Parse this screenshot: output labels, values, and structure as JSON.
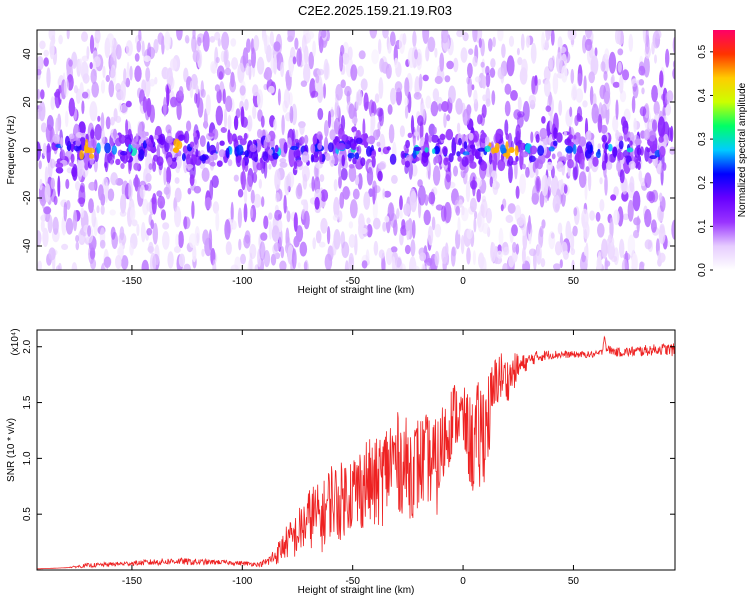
{
  "title": "C2E2.2025.159.21.19.R03",
  "chart_data": [
    {
      "type": "heatmap",
      "xlabel": "Height of straight line (km)",
      "ylabel": "Frequency (Hz)",
      "xlim": [
        -193,
        96
      ],
      "ylim": [
        -50,
        50
      ],
      "xticks": [
        -150,
        -100,
        -50,
        0,
        50
      ],
      "yticks": [
        -40,
        -20,
        0,
        20,
        40
      ],
      "colorbar": {
        "label": "Normalized spectral amplitude",
        "range": [
          0,
          0.55
        ],
        "ticks": [
          "0.0",
          "0.1",
          "0.2",
          "0.3",
          "0.4",
          "0.5"
        ],
        "colors": [
          "#ffffff",
          "#e6ccff",
          "#9933ff",
          "#6600ff",
          "#0000ff",
          "#00ccff",
          "#00ff66",
          "#ccff00",
          "#ffcc00",
          "#ff3300",
          "#ff0066"
        ]
      },
      "ridge": {
        "frequency_hz": 0,
        "typical_amplitude": 0.25,
        "peak_amplitude": 0.45,
        "peak_x_km": [
          -170,
          -130,
          15,
          22
        ]
      },
      "background_amplitude": 0.05
    },
    {
      "type": "line",
      "xlabel": "Height of straight line (km)",
      "ylabel": "SNR (10 * v/v)",
      "multiplier": "(x10⁴)",
      "xlim": [
        -193,
        96
      ],
      "ylim": [
        0,
        2.15
      ],
      "xticks": [
        -150,
        -100,
        -50,
        0,
        50
      ],
      "yticks": [
        0.5,
        1.0,
        1.5,
        2.0
      ],
      "ytick_labels": [
        "0.5",
        "1.0",
        "1.5",
        "2.0"
      ],
      "series": [
        {
          "color": "#ee2222",
          "x": [
            -193,
            -180,
            -170,
            -160,
            -150,
            -140,
            -130,
            -120,
            -110,
            -100,
            -92,
            -88,
            -84,
            -80,
            -76,
            -72,
            -68,
            -64,
            -60,
            -56,
            -52,
            -48,
            -44,
            -40,
            -36,
            -32,
            -28,
            -24,
            -20,
            -16,
            -12,
            -8,
            -4,
            0,
            4,
            8,
            12,
            16,
            20,
            24,
            28,
            32,
            36,
            40,
            50,
            60,
            63,
            64,
            65,
            70,
            80,
            90,
            96
          ],
          "y": [
            0.01,
            0.02,
            0.04,
            0.05,
            0.06,
            0.07,
            0.08,
            0.07,
            0.07,
            0.06,
            0.05,
            0.08,
            0.15,
            0.25,
            0.3,
            0.4,
            0.5,
            0.45,
            0.65,
            0.6,
            0.7,
            0.7,
            0.8,
            0.75,
            0.85,
            1.0,
            0.95,
            0.9,
            0.95,
            1.0,
            0.9,
            1.2,
            1.4,
            1.35,
            1.1,
            1.2,
            1.4,
            1.75,
            1.7,
            1.8,
            1.85,
            1.9,
            1.92,
            1.93,
            1.93,
            1.93,
            1.95,
            2.1,
            1.98,
            1.95,
            1.96,
            1.98,
            1.97
          ],
          "noise": [
            0,
            0,
            0.02,
            0.02,
            0.02,
            0.03,
            0.03,
            0.03,
            0.02,
            0.02,
            0.02,
            0.05,
            0.1,
            0.15,
            0.2,
            0.25,
            0.3,
            0.3,
            0.35,
            0.35,
            0.35,
            0.4,
            0.4,
            0.4,
            0.45,
            0.45,
            0.45,
            0.45,
            0.45,
            0.4,
            0.45,
            0.4,
            0.3,
            0.3,
            0.45,
            0.55,
            0.4,
            0.25,
            0.2,
            0.15,
            0.08,
            0.06,
            0.05,
            0.04,
            0.03,
            0.03,
            0.03,
            0.02,
            0.04,
            0.04,
            0.05,
            0.05,
            0.06
          ]
        }
      ]
    }
  ]
}
